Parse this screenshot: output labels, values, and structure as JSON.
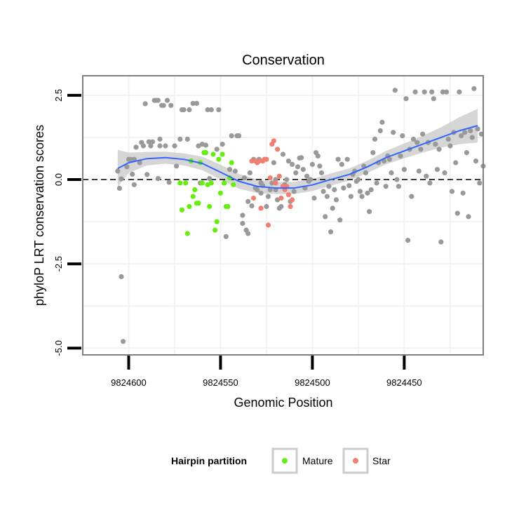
{
  "chart_data": {
    "type": "scatter",
    "title": "Conservation",
    "xlabel": "Genomic Position",
    "ylabel": "phyloP LRT conservation scores",
    "x_reversed": true,
    "xlim": [
      9824407,
      9824625
    ],
    "ylim": [
      -5.2,
      3.08
    ],
    "x_ticks": [
      9824600,
      9824550,
      9824500,
      9824450
    ],
    "x_tick_labels": [
      "9824600",
      "9824550",
      "9824500",
      "9824450"
    ],
    "y_ticks": [
      2.5,
      0.0,
      -2.5,
      -5.0
    ],
    "y_tick_labels": [
      "2.5",
      "0.0",
      "-2.5",
      "-5.0"
    ],
    "grid": true,
    "reference_line": {
      "y": 0,
      "style": "dashed",
      "color": "#000000"
    },
    "legend": {
      "title": "Hairpin partition",
      "position": "bottom",
      "entries": [
        {
          "label": "Mature",
          "color": "#66ee11"
        },
        {
          "label": "Star",
          "color": "#f07f72"
        }
      ]
    },
    "series": [
      {
        "color": "#999999",
        "points": [
          [
            9824606,
            0.25
          ],
          [
            9824605,
            -0.26
          ],
          [
            9824604,
            0.02
          ],
          [
            9824604,
            -2.88
          ],
          [
            9824603,
            -4.8
          ],
          [
            9824601,
            0.38
          ],
          [
            9824600,
            0.6
          ],
          [
            9824599,
            0.6
          ],
          [
            9824598,
            0.16
          ],
          [
            9824597,
            0.6
          ],
          [
            9824597,
            -0.15
          ],
          [
            9824596,
            0.96
          ],
          [
            9824594,
            0.5
          ],
          [
            9824593,
            1.1
          ],
          [
            9824592,
            1.0
          ],
          [
            9824591,
            2.25
          ],
          [
            9824590,
            0.15
          ],
          [
            9824589,
            1.12
          ],
          [
            9824588,
            1.0
          ],
          [
            9824587,
            1.12
          ],
          [
            9824586,
            2.35
          ],
          [
            9824585,
            2.35
          ],
          [
            9824584,
            0.03
          ],
          [
            9824584,
            2.35
          ],
          [
            9824583,
            1.2
          ],
          [
            9824583,
            1.0
          ],
          [
            9824582,
            2.2
          ],
          [
            9824581,
            2.2
          ],
          [
            9824580,
            1.0
          ],
          [
            9824579,
            2.35
          ],
          [
            9824578,
            -0.08
          ],
          [
            9824577,
            2.2
          ],
          [
            9824575,
            1.0
          ],
          [
            9824574,
            0.4
          ],
          [
            9824572,
            1.2
          ],
          [
            9824571,
            2.07
          ],
          [
            9824570,
            2.07
          ],
          [
            9824568,
            1.2
          ],
          [
            9824567,
            2.07
          ],
          [
            9824565,
            2.26
          ],
          [
            9824563,
            2.26
          ],
          [
            9824562,
            1.0
          ],
          [
            9824561,
            -0.1
          ],
          [
            9824560,
            1.05
          ],
          [
            9824558,
            1.02
          ],
          [
            9824557,
            2.07
          ],
          [
            9824556,
            0.03
          ],
          [
            9824555,
            2.07
          ],
          [
            9824552,
            0.9
          ],
          [
            9824551,
            2.07
          ],
          [
            9824549,
            1.05
          ],
          [
            9824548,
            -0.1
          ],
          [
            9824547,
            -1.69
          ],
          [
            9824545,
            0.3
          ],
          [
            9824544,
            1.3
          ],
          [
            9824542,
            0.25
          ],
          [
            9824541,
            1.3
          ],
          [
            9824540,
            1.3
          ],
          [
            9824538,
            -1.06
          ],
          [
            9824538,
            -1.3
          ],
          [
            9824537,
            0.05
          ],
          [
            9824536,
            -1.5
          ],
          [
            9824535,
            -0.65
          ],
          [
            9824535,
            -1.6
          ],
          [
            9824534,
            0.2
          ],
          [
            9824533,
            -0.78
          ],
          [
            9824532,
            0.6
          ],
          [
            9824531,
            -0.25
          ],
          [
            9824530,
            -0.3
          ],
          [
            9824529,
            0.6
          ],
          [
            9824528,
            -0.1
          ],
          [
            9824528,
            -0.4
          ],
          [
            9824527,
            -0.18
          ],
          [
            9824526,
            0.6
          ],
          [
            9824525,
            -0.8
          ],
          [
            9824524,
            -0.5
          ],
          [
            9824523,
            -0.3
          ],
          [
            9824522,
            -0.1
          ],
          [
            9824521,
            0.5
          ],
          [
            9824520,
            -0.3
          ],
          [
            9824520,
            0.0
          ],
          [
            9824519,
            -0.6
          ],
          [
            9824518,
            -0.85
          ],
          [
            9824517,
            -0.8
          ],
          [
            9824516,
            0.75
          ],
          [
            9824515,
            -0.15
          ],
          [
            9824514,
            0.0
          ],
          [
            9824513,
            0.55
          ],
          [
            9824512,
            -0.65
          ],
          [
            9824511,
            0.45
          ],
          [
            9824510,
            -0.35
          ],
          [
            9824509,
            0.2
          ],
          [
            9824508,
            0.38
          ],
          [
            9824507,
            0.64
          ],
          [
            9824506,
            0.65
          ],
          [
            9824505,
            0.3
          ],
          [
            9824504,
            -0.25
          ],
          [
            9824503,
            0.1
          ],
          [
            9824502,
            -0.05
          ],
          [
            9824501,
            0.0
          ],
          [
            9824500,
            0.45
          ],
          [
            9824499,
            -0.55
          ],
          [
            9824498,
            0.8
          ],
          [
            9824497,
            0.7
          ],
          [
            9824496,
            0.4
          ],
          [
            9824495,
            0.2
          ],
          [
            9824494,
            -0.35
          ],
          [
            9824493,
            -1.1
          ],
          [
            9824492,
            -0.5
          ],
          [
            9824491,
            -0.2
          ],
          [
            9824490,
            -1.55
          ],
          [
            9824489,
            -0.85
          ],
          [
            9824488,
            -0.3
          ],
          [
            9824487,
            -0.6
          ],
          [
            9824486,
            0.6
          ],
          [
            9824485,
            -1.2
          ],
          [
            9824484,
            0.45
          ],
          [
            9824483,
            -0.25
          ],
          [
            9824481,
            0.6
          ],
          [
            9824480,
            -0.18
          ],
          [
            9824479,
            -0.5
          ],
          [
            9824478,
            0.15
          ],
          [
            9824477,
            0.25
          ],
          [
            9824476,
            -0.05
          ],
          [
            9824475,
            0.0
          ],
          [
            9824474,
            -0.35
          ],
          [
            9824473,
            -0.5
          ],
          [
            9824472,
            0.4
          ],
          [
            9824471,
            0.2
          ],
          [
            9824470,
            -0.4
          ],
          [
            9824469,
            -0.95
          ],
          [
            9824468,
            -0.3
          ],
          [
            9824467,
            0.8
          ],
          [
            9824466,
            1.2
          ],
          [
            9824465,
            -0.1
          ],
          [
            9824464,
            0.5
          ],
          [
            9824463,
            1.45
          ],
          [
            9824462,
            1.7
          ],
          [
            9824461,
            0.55
          ],
          [
            9824460,
            -0.2
          ],
          [
            9824459,
            0.7
          ],
          [
            9824458,
            0.6
          ],
          [
            9824457,
            0.2
          ],
          [
            9824456,
            1.4
          ],
          [
            9824455,
            2.65
          ],
          [
            9824454,
            0.0
          ],
          [
            9824453,
            -0.2
          ],
          [
            9824452,
            0.7
          ],
          [
            9824451,
            1.3
          ],
          [
            9824450,
            0.3
          ],
          [
            9824449,
            2.4
          ],
          [
            9824448,
            -1.8
          ],
          [
            9824447,
            0.9
          ],
          [
            9824446,
            -0.5
          ],
          [
            9824445,
            1.2
          ],
          [
            9824444,
            2.6
          ],
          [
            9824443,
            1.1
          ],
          [
            9824442,
            0.25
          ],
          [
            9824441,
            0.9
          ],
          [
            9824440,
            1.35
          ],
          [
            9824439,
            2.6
          ],
          [
            9824438,
            0.1
          ],
          [
            9824437,
            1.1
          ],
          [
            9824436,
            -0.1
          ],
          [
            9824435,
            2.6
          ],
          [
            9824434,
            2.4
          ],
          [
            9824433,
            1.05
          ],
          [
            9824432,
            0.3
          ],
          [
            9824431,
            0.9
          ],
          [
            9824430,
            -1.85
          ],
          [
            9824429,
            2.6
          ],
          [
            9824428,
            0.2
          ],
          [
            9824427,
            2.6
          ],
          [
            9824426,
            1.2
          ],
          [
            9824425,
            1.0
          ],
          [
            9824424,
            -0.35
          ],
          [
            9824423,
            1.4
          ],
          [
            9824422,
            0.5
          ],
          [
            9824421,
            -1.0
          ],
          [
            9824420,
            2.6
          ],
          [
            9824419,
            1.3
          ],
          [
            9824418,
            -0.4
          ],
          [
            9824417,
            1.4
          ],
          [
            9824416,
            0.8
          ],
          [
            9824415,
            -1.1
          ],
          [
            9824414,
            1.45
          ],
          [
            9824413,
            1.25
          ],
          [
            9824412,
            2.7
          ],
          [
            9824411,
            0.55
          ],
          [
            9824410,
            1.5
          ],
          [
            9824409,
            -0.1
          ],
          [
            9824408,
            1.35
          ],
          [
            9824407,
            0.4
          ]
        ]
      },
      {
        "name": "Mature",
        "color": "#66ee11",
        "points": [
          [
            9824572,
            -0.1
          ],
          [
            9824571,
            -0.9
          ],
          [
            9824569,
            -0.1
          ],
          [
            9824568,
            -1.6
          ],
          [
            9824567,
            -0.8
          ],
          [
            9824566,
            0.55
          ],
          [
            9824565,
            -0.5
          ],
          [
            9824564,
            -0.3
          ],
          [
            9824563,
            -0.7
          ],
          [
            9824562,
            -0.7
          ],
          [
            9824561,
            0.5
          ],
          [
            9824560,
            -0.1
          ],
          [
            9824559,
            0.8
          ],
          [
            9824558,
            0.8
          ],
          [
            9824557,
            -0.15
          ],
          [
            9824556,
            -0.8
          ],
          [
            9824555,
            -0.1
          ],
          [
            9824554,
            0.75
          ],
          [
            9824553,
            -1.5
          ],
          [
            9824552,
            -1.25
          ],
          [
            9824551,
            0.6
          ],
          [
            9824550,
            -0.4
          ],
          [
            9824549,
            0.75
          ],
          [
            9824548,
            -0.1
          ],
          [
            9824547,
            -0.8
          ],
          [
            9824546,
            -0.8
          ],
          [
            9824545,
            0.05
          ],
          [
            9824544,
            0.5
          ],
          [
            9824543,
            -0.15
          ]
        ]
      },
      {
        "name": "Star",
        "color": "#f07f72",
        "points": [
          [
            9824533,
            0.55
          ],
          [
            9824532,
            -0.55
          ],
          [
            9824531,
            0.55
          ],
          [
            9824530,
            0.5
          ],
          [
            9824529,
            0.55
          ],
          [
            9824528,
            -0.85
          ],
          [
            9824527,
            0.55
          ],
          [
            9824526,
            0.6
          ],
          [
            9824525,
            0.6
          ],
          [
            9824524,
            -1.35
          ],
          [
            9824523,
            0.05
          ],
          [
            9824522,
            1.05
          ],
          [
            9824521,
            1.15
          ],
          [
            9824520,
            -0.1
          ],
          [
            9824519,
            0.9
          ],
          [
            9824518,
            0.1
          ],
          [
            9824517,
            -0.55
          ],
          [
            9824516,
            -0.2
          ],
          [
            9824515,
            -0.3
          ],
          [
            9824514,
            -0.2
          ],
          [
            9824513,
            -0.45
          ],
          [
            9824512,
            -0.8
          ],
          [
            9824511,
            -0.6
          ]
        ]
      }
    ],
    "smooth": {
      "color": "#3366ff",
      "band_color": "#cccccc",
      "points": [
        [
          9824606,
          0.33,
          0.55
        ],
        [
          9824600,
          0.5,
          0.3
        ],
        [
          9824590,
          0.62,
          0.2
        ],
        [
          9824580,
          0.65,
          0.18
        ],
        [
          9824570,
          0.6,
          0.18
        ],
        [
          9824560,
          0.48,
          0.2
        ],
        [
          9824550,
          0.22,
          0.22
        ],
        [
          9824540,
          -0.05,
          0.22
        ],
        [
          9824530,
          -0.2,
          0.2
        ],
        [
          9824520,
          -0.25,
          0.18
        ],
        [
          9824510,
          -0.25,
          0.18
        ],
        [
          9824500,
          -0.16,
          0.18
        ],
        [
          9824490,
          0.0,
          0.18
        ],
        [
          9824480,
          0.15,
          0.18
        ],
        [
          9824470,
          0.38,
          0.18
        ],
        [
          9824460,
          0.65,
          0.2
        ],
        [
          9824450,
          0.85,
          0.22
        ],
        [
          9824440,
          1.05,
          0.25
        ],
        [
          9824430,
          1.25,
          0.3
        ],
        [
          9824420,
          1.45,
          0.4
        ],
        [
          9824410,
          1.6,
          0.5
        ]
      ]
    }
  }
}
